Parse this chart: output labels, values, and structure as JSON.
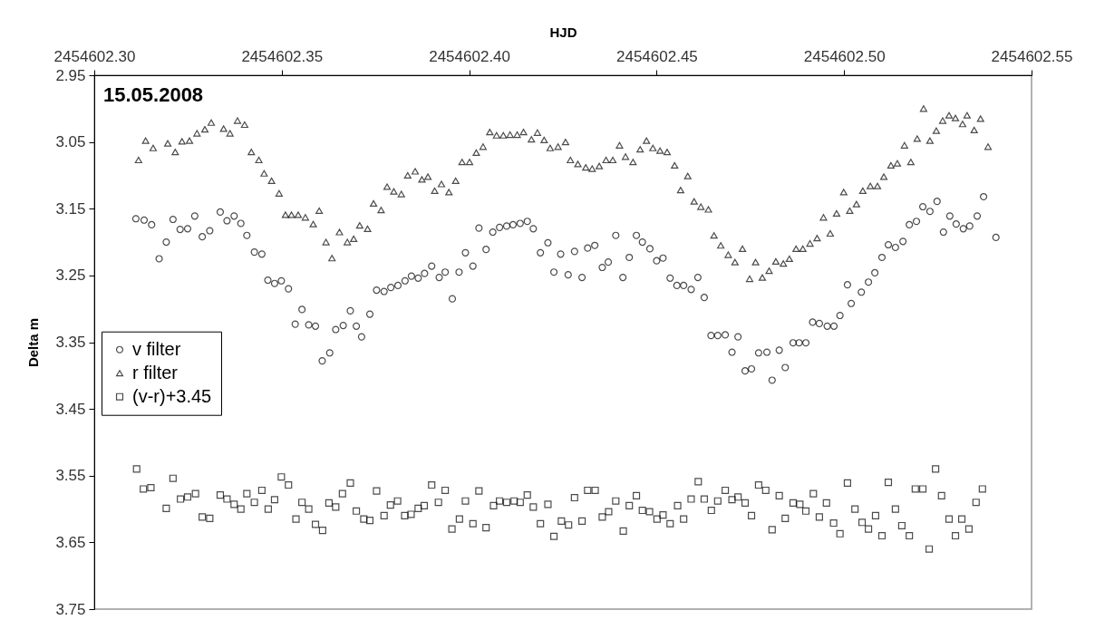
{
  "chart_data": {
    "type": "scatter",
    "xlabel": "HJD",
    "ylabel": "Delta m",
    "annotations": [
      "15.05.2008"
    ],
    "xlim": [
      2454602.3,
      2454602.55
    ],
    "xticks": [
      {
        "value": 2454602.3,
        "label": "2454602.30"
      },
      {
        "value": 2454602.35,
        "label": "2454602.35"
      },
      {
        "value": 2454602.4,
        "label": "2454602.40"
      },
      {
        "value": 2454602.45,
        "label": "2454602.45"
      },
      {
        "value": 2454602.5,
        "label": "2454602.50"
      },
      {
        "value": 2454602.55,
        "label": "2454602.55"
      }
    ],
    "ylim": [
      3.75,
      2.95
    ],
    "yticks": [
      2.95,
      3.05,
      3.15,
      3.25,
      3.35,
      3.45,
      3.55,
      3.65,
      3.75
    ],
    "grid": false,
    "legend": "left",
    "series": [
      {
        "name": "v filter",
        "color": "#000000",
        "marker": "circle",
        "x": [
          2454602.3111,
          2454602.3133,
          2454602.3153,
          2454602.3173,
          2454602.3192,
          2454602.321,
          2454602.3229,
          2454602.3249,
          2454602.3268,
          2454602.3288,
          2454602.3308,
          2454602.3336,
          2454602.3354,
          2454602.3373,
          2454602.3391,
          2454602.3407,
          2454602.3427,
          2454602.3447,
          2454602.3463,
          2454602.3481,
          2454602.3499,
          2454602.3518,
          2454602.3536,
          2454602.3554,
          2454602.3572,
          2454602.359,
          2454602.3608,
          2454602.3628,
          2454602.3644,
          2454602.3664,
          2454602.3683,
          2454602.3699,
          2454602.3713,
          2454602.3735,
          2454602.3753,
          2454602.3773,
          2454602.3791,
          2454602.381,
          2454602.3829,
          2454602.3846,
          2454602.3864,
          2454602.3881,
          2454602.39,
          2454602.392,
          2454602.3936,
          2454602.3955,
          2454602.3973,
          2454602.399,
          2454602.401,
          2454602.4026,
          2454602.4045,
          2454602.4063,
          2454602.4081,
          2454602.41,
          2454602.4117,
          2454602.4136,
          2454602.4155,
          2454602.4171,
          2454602.419,
          2454602.421,
          2454602.4226,
          2454602.4244,
          2454602.4264,
          2454602.4281,
          2454602.4301,
          2454602.4316,
          2454602.4335,
          2454602.4355,
          2454602.4371,
          2454602.4391,
          2454602.441,
          2454602.4427,
          2454602.4446,
          2454602.4462,
          2454602.4482,
          2454602.45,
          2454602.4517,
          2454602.4536,
          2454602.4554,
          2454602.4572,
          2454602.4592,
          2454602.461,
          2454602.4627,
          2454602.4645,
          2454602.4663,
          2454602.4683,
          2454602.4701,
          2454602.4717,
          2454602.4736,
          2454602.4753,
          2454602.4772,
          2454602.4794,
          2454602.4808,
          2454602.4827,
          2454602.4843,
          2454602.4864,
          2454602.488,
          2454602.4898,
          2454602.4916,
          2454602.4934,
          2454602.4955,
          2454602.4973,
          2454602.4989,
          2454602.5009,
          2454602.5019,
          2454602.5046,
          2454602.5065,
          2454602.5082,
          2454602.5101,
          2454602.5118,
          2454602.5137,
          2454602.5157,
          2454602.5174,
          2454602.5193,
          2454602.521,
          2454602.5229,
          2454602.5248,
          2454602.5265,
          2454602.5282,
          2454602.5299,
          2454602.5318,
          2454602.5335,
          2454602.5355,
          2454602.5372,
          2454602.5405
        ],
        "values": [
          3.165,
          3.167,
          3.174,
          3.225,
          3.2,
          3.166,
          3.181,
          3.18,
          3.161,
          3.192,
          3.183,
          3.155,
          3.168,
          3.161,
          3.172,
          3.19,
          3.215,
          3.218,
          3.257,
          3.262,
          3.258,
          3.27,
          3.323,
          3.301,
          3.324,
          3.326,
          3.378,
          3.366,
          3.331,
          3.325,
          3.303,
          3.326,
          3.342,
          3.308,
          3.272,
          3.274,
          3.268,
          3.265,
          3.258,
          3.251,
          3.254,
          3.247,
          3.236,
          3.253,
          3.245,
          3.285,
          3.245,
          3.216,
          3.236,
          3.179,
          3.211,
          3.185,
          3.178,
          3.176,
          3.174,
          3.172,
          3.169,
          3.18,
          3.216,
          3.201,
          3.245,
          3.218,
          3.249,
          3.214,
          3.253,
          3.209,
          3.205,
          3.238,
          3.23,
          3.19,
          3.253,
          3.223,
          3.19,
          3.2,
          3.21,
          3.228,
          3.224,
          3.254,
          3.265,
          3.265,
          3.271,
          3.253,
          3.283,
          3.34,
          3.34,
          3.339,
          3.365,
          3.342,
          3.393,
          3.39,
          3.366,
          3.365,
          3.407,
          3.362,
          3.388,
          3.351,
          3.351,
          3.351,
          3.32,
          3.322,
          3.326,
          3.326,
          3.31,
          3.264,
          3.292,
          3.275,
          3.26,
          3.246,
          3.223,
          3.204,
          3.208,
          3.199,
          3.174,
          3.169,
          3.147,
          3.154,
          3.139,
          3.185,
          3.161,
          3.173,
          3.18,
          3.176,
          3.161,
          3.132,
          3.193
        ]
      },
      {
        "name": "r filter",
        "color": "#000000",
        "marker": "triangle",
        "x": [
          2454602.3118,
          2454602.3137,
          2454602.3157,
          2454602.3196,
          2454602.3216,
          2454602.3234,
          2454602.3254,
          2454602.3274,
          2454602.3295,
          2454602.3312,
          2454602.3345,
          2454602.3362,
          2454602.3382,
          2454602.3401,
          2454602.3419,
          2454602.3439,
          2454602.3453,
          2454602.3473,
          2454602.3493,
          2454602.351,
          2454602.3526,
          2454602.3544,
          2454602.3563,
          2454602.3584,
          2454602.36,
          2454602.3618,
          2454602.3634,
          2454602.3654,
          2454602.3675,
          2454602.3692,
          2454602.3708,
          2454602.3729,
          2454602.3745,
          2454602.3765,
          2454602.3781,
          2454602.3799,
          2454602.3819,
          2454602.3836,
          2454602.3856,
          2454602.3874,
          2454602.389,
          2454602.3908,
          2454602.3926,
          2454602.3946,
          2454602.3964,
          2454602.3981,
          2454602.4001,
          2454602.4019,
          2454602.4037,
          2454602.4055,
          2454602.4073,
          2454602.4091,
          2454602.4109,
          2454602.4128,
          2454602.4145,
          2454602.4166,
          2454602.4182,
          2454602.42,
          2454602.4216,
          2454602.4237,
          2454602.4257,
          2454602.427,
          2454602.429,
          2454602.4311,
          2454602.4328,
          2454602.4347,
          2454602.4365,
          2454602.4383,
          2454602.4401,
          2454602.4417,
          2454602.4437,
          2454602.4456,
          2454602.4473,
          2454602.449,
          2454602.4509,
          2454602.4528,
          2454602.4548,
          2454602.4564,
          2454602.4583,
          2454602.46,
          2454602.4618,
          2454602.4638,
          2454602.4653,
          2454602.4671,
          2454602.4691,
          2454602.4709,
          2454602.4729,
          2454602.4748,
          2454602.4764,
          2454602.4782,
          2454602.48,
          2454602.4818,
          2454602.4838,
          2454602.4854,
          2454602.4872,
          2454602.489,
          2454602.4909,
          2454602.4928,
          2454602.4945,
          2454602.4963,
          2454602.498,
          2454602.4999,
          2454602.5015,
          2454602.5033,
          2454602.505,
          2454602.507,
          2454602.5089,
          2454602.5106,
          2454602.5125,
          2454602.5142,
          2454602.5161,
          2454602.5178,
          2454602.5195,
          2454602.5212,
          2454602.5229,
          2454602.5246,
          2454602.5263,
          2454602.528,
          2454602.5297,
          2454602.5316,
          2454602.5328,
          2454602.5347,
          2454602.5364,
          2454602.5384
        ],
        "values": [
          3.077,
          3.048,
          3.059,
          3.052,
          3.065,
          3.049,
          3.048,
          3.037,
          3.031,
          3.021,
          3.03,
          3.037,
          3.018,
          3.024,
          3.065,
          3.077,
          3.097,
          3.108,
          3.127,
          3.159,
          3.159,
          3.159,
          3.163,
          3.173,
          3.153,
          3.2,
          3.224,
          3.185,
          3.2,
          3.195,
          3.175,
          3.18,
          3.142,
          3.152,
          3.117,
          3.124,
          3.128,
          3.1,
          3.094,
          3.106,
          3.102,
          3.123,
          3.113,
          3.125,
          3.108,
          3.08,
          3.08,
          3.066,
          3.057,
          3.035,
          3.04,
          3.04,
          3.039,
          3.039,
          3.035,
          3.046,
          3.036,
          3.047,
          3.059,
          3.057,
          3.05,
          3.077,
          3.083,
          3.088,
          3.09,
          3.086,
          3.077,
          3.077,
          3.055,
          3.072,
          3.08,
          3.061,
          3.048,
          3.059,
          3.063,
          3.065,
          3.085,
          3.122,
          3.101,
          3.139,
          3.147,
          3.151,
          3.19,
          3.205,
          3.219,
          3.23,
          3.21,
          3.255,
          3.23,
          3.253,
          3.243,
          3.229,
          3.232,
          3.225,
          3.21,
          3.21,
          3.202,
          3.194,
          3.163,
          3.187,
          3.157,
          3.125,
          3.153,
          3.143,
          3.123,
          3.116,
          3.116,
          3.102,
          3.085,
          3.082,
          3.055,
          3.08,
          3.045,
          3.0,
          3.048,
          3.033,
          3.018,
          3.01,
          3.014,
          3.023,
          3.01,
          3.032,
          3.015,
          3.057
        ]
      },
      {
        "name": "(v-r)+3.45",
        "color": "#000000",
        "marker": "square",
        "x": [
          2454602.3113,
          2454602.3131,
          2454602.3151,
          2454602.3192,
          2454602.321,
          2454602.323,
          2454602.3249,
          2454602.327,
          2454602.3288,
          2454602.3308,
          2454602.3336,
          2454602.3354,
          2454602.3373,
          2454602.3391,
          2454602.3407,
          2454602.3427,
          2454602.3447,
          2454602.3464,
          2454602.3481,
          2454602.3499,
          2454602.3518,
          2454602.3538,
          2454602.3554,
          2454602.3572,
          2454602.359,
          2454602.3609,
          2454602.3626,
          2454602.3644,
          2454602.3662,
          2454602.3683,
          2454602.3699,
          2454602.3719,
          2454602.3735,
          2454602.3753,
          2454602.3773,
          2454602.379,
          2454602.3809,
          2454602.3828,
          2454602.3845,
          2454602.3864,
          2454602.388,
          2454602.39,
          2454602.3918,
          2454602.3936,
          2454602.3954,
          2454602.3974,
          2454602.399,
          2454602.401,
          2454602.4026,
          2454602.4045,
          2454602.4065,
          2454602.4081,
          2454602.41,
          2454602.412,
          2454602.4136,
          2454602.4155,
          2454602.4171,
          2454602.419,
          2454602.421,
          2454602.4226,
          2454602.4246,
          2454602.4265,
          2454602.4281,
          2454602.4301,
          2454602.4316,
          2454602.4336,
          2454602.4355,
          2454602.4372,
          2454602.4391,
          2454602.4411,
          2454602.4427,
          2454602.4446,
          2454602.4462,
          2454602.4481,
          2454602.4501,
          2454602.4517,
          2454602.4536,
          2454602.4556,
          2454602.4572,
          2454602.4592,
          2454602.4611,
          2454602.4627,
          2454602.4646,
          2454602.4663,
          2454602.4683,
          2454602.4701,
          2454602.4717,
          2454602.4736,
          2454602.4753,
          2454602.4772,
          2454602.4791,
          2454602.4808,
          2454602.4827,
          2454602.4843,
          2454602.4864,
          2454602.4882,
          2454602.4898,
          2454602.4918,
          2454602.4934,
          2454602.4953,
          2454602.4972,
          2454602.4989,
          2454602.5009,
          2454602.5029,
          2454602.5048,
          2454602.5065,
          2454602.5084,
          2454602.5101,
          2454602.5118,
          2454602.5137,
          2454602.5154,
          2454602.5174,
          2454602.519,
          2454602.521,
          2454602.5227,
          2454602.5244,
          2454602.526,
          2454602.528,
          2454602.5297,
          2454602.5314,
          2454602.5333,
          2454602.5352,
          2454602.5369
        ],
        "values": [
          3.54,
          3.57,
          3.568,
          3.599,
          3.554,
          3.585,
          3.582,
          3.577,
          3.612,
          3.614,
          3.579,
          3.585,
          3.593,
          3.6,
          3.577,
          3.59,
          3.572,
          3.6,
          3.586,
          3.552,
          3.564,
          3.615,
          3.59,
          3.6,
          3.623,
          3.632,
          3.591,
          3.597,
          3.577,
          3.561,
          3.603,
          3.615,
          3.617,
          3.573,
          3.61,
          3.594,
          3.588,
          3.61,
          3.608,
          3.599,
          3.595,
          3.564,
          3.59,
          3.572,
          3.63,
          3.615,
          3.588,
          3.622,
          3.573,
          3.628,
          3.595,
          3.588,
          3.59,
          3.588,
          3.59,
          3.579,
          3.597,
          3.622,
          3.593,
          3.641,
          3.618,
          3.624,
          3.583,
          3.618,
          3.572,
          3.572,
          3.612,
          3.604,
          3.588,
          3.633,
          3.595,
          3.58,
          3.602,
          3.604,
          3.615,
          3.609,
          3.622,
          3.595,
          3.615,
          3.585,
          3.559,
          3.585,
          3.602,
          3.588,
          3.572,
          3.586,
          3.582,
          3.591,
          3.61,
          3.564,
          3.572,
          3.631,
          3.58,
          3.614,
          3.591,
          3.593,
          3.603,
          3.577,
          3.612,
          3.591,
          3.621,
          3.637,
          3.561,
          3.6,
          3.62,
          3.63,
          3.61,
          3.64,
          3.56,
          3.6,
          3.625,
          3.64,
          3.57,
          3.57,
          3.66,
          3.54,
          3.58,
          3.615,
          3.64,
          3.615,
          3.63,
          3.59,
          3.57
        ]
      }
    ]
  }
}
